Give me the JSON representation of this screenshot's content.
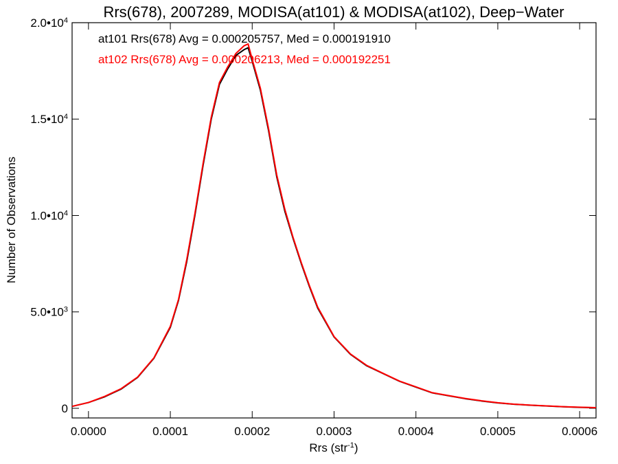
{
  "chart_data": {
    "type": "line",
    "title": "Rrs(678), 2007289, MODISA(at101) & MODISA(at102), Deep−Water",
    "xlabel": "Rrs (str",
    "xlabel_sup": "-1",
    "xlabel_close": ")",
    "ylabel": "Number of Observations",
    "xlim": [
      -2e-05,
      0.00062
    ],
    "ylim": [
      -500,
      20000
    ],
    "x_ticks": [
      0.0,
      0.0001,
      0.0002,
      0.0003,
      0.0004,
      0.0005,
      0.0006
    ],
    "x_tick_labels": [
      "0.0000",
      "0.0001",
      "0.0002",
      "0.0003",
      "0.0004",
      "0.0005",
      "0.0006"
    ],
    "y_ticks": [
      {
        "value": 0,
        "mantissa": "0",
        "exp": ""
      },
      {
        "value": 5000,
        "mantissa": "5.0•10",
        "exp": "3"
      },
      {
        "value": 10000,
        "mantissa": "1.0•10",
        "exp": "4"
      },
      {
        "value": 15000,
        "mantissa": "1.5•10",
        "exp": "4"
      },
      {
        "value": 20000,
        "mantissa": "2.0•10",
        "exp": "4"
      }
    ],
    "annotations": [
      {
        "text": "at101 Rrs(678) Avg = 0.000205757, Med = 0.000191910",
        "color": "#000000"
      },
      {
        "text": "at102 Rrs(678) Avg = 0.000206213, Med = 0.000192251",
        "color": "#ff0000"
      }
    ],
    "series": [
      {
        "color": "#000000",
        "x": [
          -2e-05,
          0.0,
          2e-05,
          4e-05,
          6e-05,
          8e-05,
          0.0001,
          0.00011,
          0.00012,
          0.00013,
          0.00014,
          0.00015,
          0.00016,
          0.00017,
          0.00018,
          0.00019,
          0.000195,
          0.0002,
          0.00021,
          0.00022,
          0.00023,
          0.00024,
          0.00025,
          0.00026,
          0.00027,
          0.00028,
          0.0003,
          0.00032,
          0.00034,
          0.00036,
          0.00038,
          0.0004,
          0.00042,
          0.00044,
          0.00046,
          0.00048,
          0.0005,
          0.00052,
          0.00054,
          0.00056,
          0.00058,
          0.0006,
          0.00062
        ],
        "y": [
          100,
          300,
          600,
          1000,
          1600,
          2600,
          4200,
          5600,
          7600,
          10000,
          12600,
          15000,
          16800,
          17600,
          18300,
          18600,
          18700,
          18000,
          16500,
          14400,
          12000,
          10200,
          8800,
          7500,
          6300,
          5200,
          3700,
          2800,
          2200,
          1800,
          1400,
          1100,
          800,
          650,
          500,
          380,
          280,
          210,
          160,
          120,
          80,
          50,
          30
        ]
      },
      {
        "color": "#ff0000",
        "x": [
          -2e-05,
          0.0,
          2e-05,
          4e-05,
          6e-05,
          8e-05,
          0.0001,
          0.00011,
          0.00012,
          0.00013,
          0.00014,
          0.00015,
          0.00016,
          0.00017,
          0.00018,
          0.00019,
          0.000195,
          0.0002,
          0.00021,
          0.00022,
          0.00023,
          0.00024,
          0.00025,
          0.00026,
          0.00027,
          0.00028,
          0.0003,
          0.00032,
          0.00034,
          0.00036,
          0.00038,
          0.0004,
          0.00042,
          0.00044,
          0.00046,
          0.00048,
          0.0005,
          0.00052,
          0.00054,
          0.00056,
          0.00058,
          0.0006,
          0.00062
        ],
        "y": [
          100,
          300,
          620,
          1020,
          1620,
          2620,
          4250,
          5650,
          7700,
          10100,
          12700,
          15100,
          16900,
          17700,
          18400,
          18800,
          18900,
          18100,
          16600,
          14500,
          12100,
          10300,
          8850,
          7550,
          6350,
          5250,
          3720,
          2820,
          2220,
          1810,
          1410,
          1110,
          810,
          660,
          510,
          390,
          290,
          215,
          165,
          125,
          85,
          55,
          35
        ]
      }
    ]
  }
}
